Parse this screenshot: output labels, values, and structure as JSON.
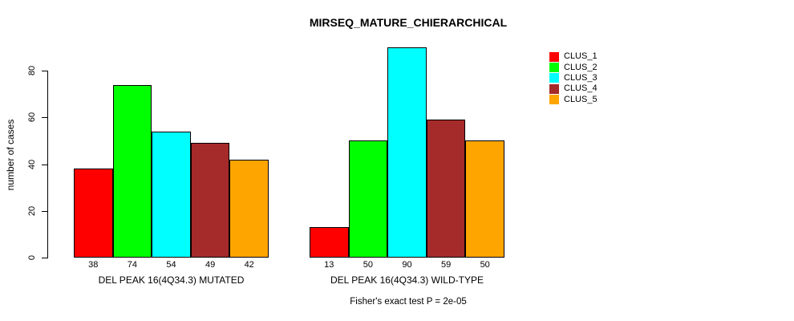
{
  "title": "MIRSEQ_MATURE_CHIERARCHICAL",
  "chart_data": {
    "type": "bar",
    "title": "MIRSEQ_MATURE_CHIERARCHICAL",
    "ylabel": "number of cases",
    "xlabel": "",
    "ylim": [
      0,
      90
    ],
    "yticks": [
      0,
      20,
      40,
      60,
      80
    ],
    "grid": false,
    "legend_position": "right",
    "categories": [
      "DEL PEAK 16(4Q34.3) MUTATED",
      "DEL PEAK 16(4Q34.3) WILD-TYPE"
    ],
    "series": [
      {
        "name": "CLUS_1",
        "color": "#ff0000",
        "values": [
          38,
          13
        ]
      },
      {
        "name": "CLUS_2",
        "color": "#00ff00",
        "values": [
          74,
          50
        ]
      },
      {
        "name": "CLUS_3",
        "color": "#00ffff",
        "values": [
          54,
          90
        ]
      },
      {
        "name": "CLUS_4",
        "color": "#a52a2a",
        "values": [
          49,
          59
        ]
      },
      {
        "name": "CLUS_5",
        "color": "#ffa500",
        "values": [
          42,
          50
        ]
      }
    ],
    "bar_value_labels": {
      "DEL PEAK 16(4Q34.3) MUTATED": [
        38,
        74,
        54,
        49,
        42
      ],
      "DEL PEAK 16(4Q34.3) WILD-TYPE": [
        13,
        50,
        90,
        59,
        50
      ]
    },
    "annotation": "Fisher's exact test P = 2e-05",
    "bar_border_color": "#000000",
    "background_color": "#ffffff"
  }
}
